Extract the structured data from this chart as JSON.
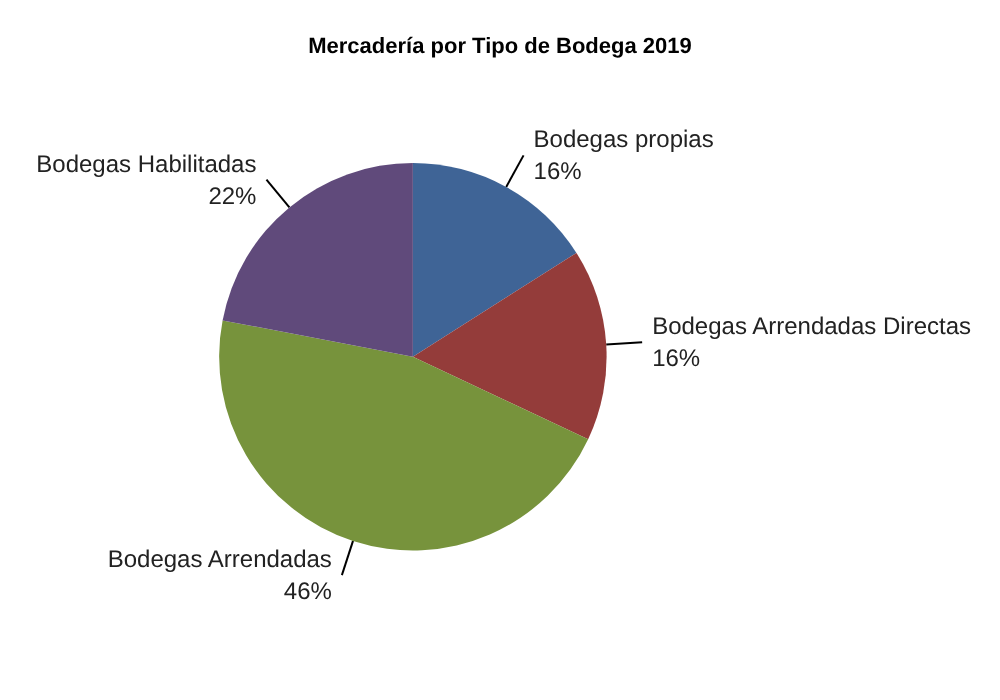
{
  "chart_data": {
    "type": "pie",
    "title": "Mercadería por Tipo de Bodega 2019",
    "categories": [
      "Bodegas propias",
      "Bodegas Arrendadas Directas",
      "Bodegas Arrendadas",
      "Bodegas Habilitadas"
    ],
    "values": [
      16,
      16,
      46,
      22
    ],
    "colors": [
      "#3f6496",
      "#943c3a",
      "#77933c",
      "#604a7b"
    ],
    "value_labels": [
      "16%",
      "16%",
      "46%",
      "22%"
    ],
    "legend": false
  }
}
